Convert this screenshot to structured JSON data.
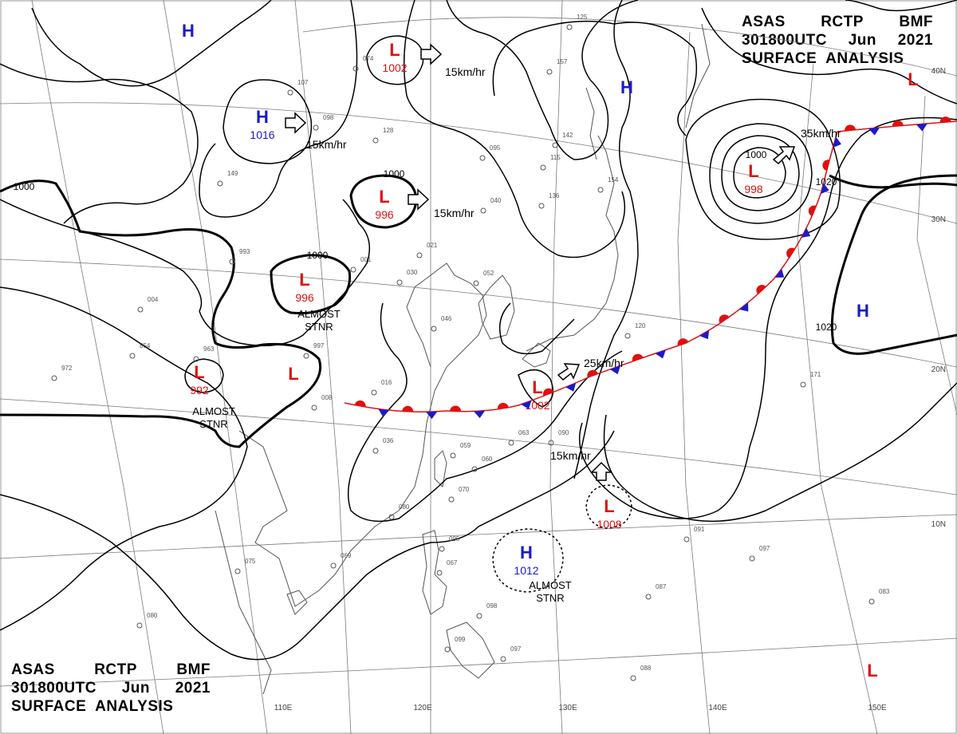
{
  "header_top_right": {
    "line1": [
      "ASAS",
      "RCTP",
      "BMF"
    ],
    "line2": [
      "301800UTC",
      "Jun",
      "2021"
    ],
    "line3": "SURFACE  ANALYSIS"
  },
  "header_bottom_left": {
    "line1": [
      "ASAS",
      "RCTP",
      "BMF"
    ],
    "line2": [
      "301800UTC",
      "Jun",
      "2021"
    ],
    "line3": "SURFACE  ANALYSIS"
  },
  "lon_labels": [
    "110E",
    "120E",
    "130E",
    "140E",
    "150E"
  ],
  "lat_labels": [
    "40N",
    "30N",
    "20N",
    "10N"
  ],
  "isobar_labels": [
    "1000",
    "1000",
    "1000",
    "1000",
    "1020",
    "1020"
  ],
  "pressure_centers": [
    {
      "type": "H",
      "value": "",
      "color": "#1a1acc"
    },
    {
      "type": "L",
      "value": "1002",
      "color": "#dd1111"
    },
    {
      "type": "H",
      "value": "",
      "color": "#1a1acc"
    },
    {
      "type": "L",
      "value": "",
      "color": "#dd1111"
    },
    {
      "type": "H",
      "value": "1016",
      "color": "#1a1acc"
    },
    {
      "type": "L",
      "value": "996",
      "color": "#dd1111"
    },
    {
      "type": "L",
      "value": "998",
      "color": "#dd1111"
    },
    {
      "type": "L",
      "value": "996",
      "color": "#dd1111"
    },
    {
      "type": "H",
      "value": "",
      "color": "#1a1acc"
    },
    {
      "type": "L",
      "value": "992",
      "color": "#dd1111"
    },
    {
      "type": "L",
      "value": "",
      "color": "#dd1111"
    },
    {
      "type": "L",
      "value": "1002",
      "color": "#dd1111"
    },
    {
      "type": "L",
      "value": "1008",
      "color": "#dd1111"
    },
    {
      "type": "H",
      "value": "1012",
      "color": "#1a1acc"
    },
    {
      "type": "L",
      "value": "",
      "color": "#dd1111"
    }
  ],
  "speeds": [
    "15km/hr",
    "15km/hr",
    "15km/hr",
    "35km/hr",
    "25km/hr",
    "15km/hr"
  ],
  "notes": [
    {
      "line1": "ALMOST",
      "line2": "STNR"
    },
    {
      "line1": "ALMOST",
      "line2": "STNR"
    },
    {
      "line1": "ALMOST",
      "line2": "STNR"
    }
  ],
  "station_labels": [
    "074",
    "107",
    "098",
    "128",
    "149",
    "095",
    "115",
    "142",
    "136",
    "154",
    "993",
    "021",
    "040",
    "052",
    "030",
    "001",
    "004",
    "963",
    "854",
    "972",
    "997",
    "016",
    "046",
    "008",
    "036",
    "059",
    "063",
    "090",
    "060",
    "070",
    "080",
    "069",
    "075",
    "095",
    "067",
    "098",
    "099",
    "097",
    "080",
    "087",
    "091",
    "097",
    "171",
    "120",
    "083",
    "088",
    "125",
    "157"
  ],
  "colors": {
    "high": "#1a1acc",
    "low": "#dd1111",
    "warm_front": "#e01010",
    "cold_front": "#1a1acc",
    "isobar": "#000000",
    "grid": "#777777",
    "coast": "#555555"
  }
}
